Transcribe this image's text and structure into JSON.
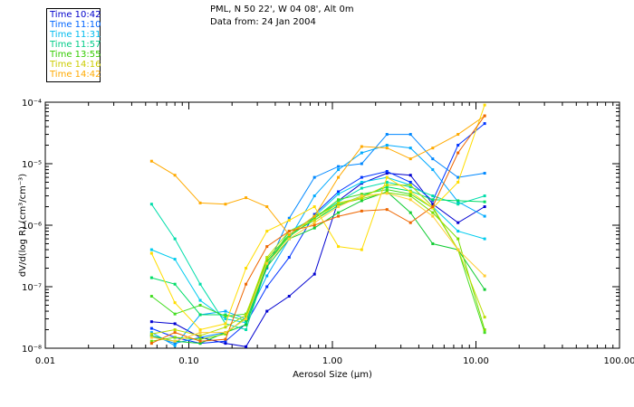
{
  "header": {
    "title": "PML, N 50 22', W 04 08', Alt 0m",
    "date": "Data from: 24 Jan 2004"
  },
  "chart_data": {
    "type": "line",
    "title": "PML, N 50 22', W 04 08', Alt 0m",
    "subtitle": "Data from: 24 Jan 2004",
    "xlabel": "Aerosol Size (μm)",
    "ylabel": "dV/d(log R)  (cm³/cm⁻³)",
    "xscale": "log",
    "yscale": "log",
    "xlim": [
      0.01,
      100
    ],
    "ylim": [
      1e-08,
      0.0001
    ],
    "x_ticks": [
      "0.01",
      "0.10",
      "1.00",
      "10.00",
      "100.00"
    ],
    "y_ticks": [
      "10⁻⁸",
      "10⁻⁷",
      "10⁻⁶",
      "10⁻⁵",
      "10⁻⁴"
    ],
    "legend_position": "top-left",
    "x": [
      0.055,
      0.08,
      0.12,
      0.18,
      0.25,
      0.35,
      0.5,
      0.75,
      1.1,
      1.6,
      2.4,
      3.5,
      5.0,
      7.5,
      11.5
    ],
    "series": [
      {
        "name": "Time 10:42",
        "color": "#0000d0",
        "values": [
          2.7e-08,
          2.5e-08,
          1.5e-08,
          1.2e-08,
          1.06e-08,
          4e-08,
          7e-08,
          1.6e-07,
          2.5e-06,
          4.8e-06,
          7e-06,
          6.5e-06,
          2.2e-06,
          1.1e-06,
          2e-06
        ]
      },
      {
        "name": "Time 10:42",
        "color": "#0033ff",
        "values": [
          2.1e-08,
          1.5e-08,
          1.2e-08,
          1.3e-08,
          2.5e-08,
          1e-07,
          3e-07,
          1.5e-06,
          3.5e-06,
          6e-06,
          7.5e-06,
          5e-06,
          2.5e-06,
          2e-05,
          4.5e-05
        ]
      },
      {
        "name": "Time 11:10",
        "color": "#0088ff",
        "values": [
          1.6e-08,
          1.2e-08,
          1.5e-08,
          1.8e-08,
          3e-08,
          2e-07,
          1.3e-06,
          6e-06,
          9e-06,
          1e-05,
          3e-05,
          3e-05,
          1.2e-05,
          6e-06,
          7e-06
        ]
      },
      {
        "name": "Time 11:10",
        "color": "#00aaff",
        "values": [
          1.8e-08,
          1.1e-08,
          3.5e-08,
          4e-08,
          3e-08,
          1.5e-07,
          6e-07,
          3e-06,
          8e-06,
          1.5e-05,
          2e-05,
          1.8e-05,
          8e-06,
          2.4e-06,
          1.4e-06
        ]
      },
      {
        "name": "Time 11:31",
        "color": "#00ccee",
        "values": [
          4e-07,
          2.8e-07,
          6e-08,
          3e-08,
          2.6e-08,
          2.5e-07,
          7e-07,
          1.4e-06,
          3.2e-06,
          5e-06,
          6e-06,
          4.5e-06,
          2e-06,
          8e-07,
          6e-07
        ]
      },
      {
        "name": "Time 11:31",
        "color": "#00ddaa",
        "values": [
          2.2e-06,
          6e-07,
          1.1e-07,
          2.5e-08,
          2e-08,
          2.2e-07,
          8e-07,
          1.3e-06,
          2.4e-06,
          4e-06,
          5e-06,
          4.2e-06,
          3e-06,
          2.2e-06,
          3e-06
        ]
      },
      {
        "name": "Time 11:57",
        "color": "#00dd66",
        "values": [
          1.4e-07,
          1.1e-07,
          3.5e-08,
          3.5e-08,
          2.8e-08,
          2.3e-07,
          7e-07,
          1.2e-06,
          2.1e-06,
          3e-06,
          4.2e-06,
          3.6e-06,
          2.6e-06,
          2.5e-06,
          2.4e-06
        ]
      },
      {
        "name": "Time 11:57",
        "color": "#11cc33",
        "values": [
          1.6e-08,
          1.3e-08,
          1.2e-08,
          1.8e-08,
          2.4e-08,
          2.1e-07,
          6e-07,
          9e-07,
          1.6e-06,
          2.5e-06,
          3.5e-06,
          1.6e-06,
          5e-07,
          4e-07,
          9e-08
        ]
      },
      {
        "name": "Time 13:55",
        "color": "#44dd22",
        "values": [
          7e-08,
          3.6e-08,
          5e-08,
          3.3e-08,
          3.6e-08,
          2.6e-07,
          6.5e-07,
          1.3e-06,
          2.6e-06,
          3.2e-06,
          3.8e-06,
          3.2e-06,
          1.9e-06,
          4e-07,
          1.8e-08
        ]
      },
      {
        "name": "Time 13:55",
        "color": "#77dd00",
        "values": [
          1.3e-08,
          1.5e-08,
          1.4e-08,
          1.7e-08,
          3.2e-08,
          2.8e-07,
          7e-07,
          1.4e-06,
          2.2e-06,
          2.7e-06,
          3.4e-06,
          3e-06,
          1.6e-06,
          6e-07,
          2e-08
        ]
      },
      {
        "name": "Time 14:16",
        "color": "#bbdd00",
        "values": [
          1.7e-08,
          2e-08,
          1.6e-08,
          2.2e-08,
          3.5e-08,
          3e-07,
          8e-07,
          1.2e-06,
          2.3e-06,
          2.8e-06,
          4.5e-06,
          4.5e-06,
          2e-06,
          4e-07,
          3.2e-08
        ]
      },
      {
        "name": "Time 14:16",
        "color": "#ffdd00",
        "values": [
          3.5e-07,
          5.5e-08,
          2e-08,
          2.5e-08,
          2e-07,
          8e-07,
          1.2e-06,
          2e-06,
          4.5e-07,
          4e-07,
          6e-06,
          3.5e-06,
          1.9e-06,
          5e-06,
          9e-05
        ]
      },
      {
        "name": "Time 14:42",
        "color": "#ffaa00",
        "values": [
          1.1e-05,
          6.5e-06,
          2.3e-06,
          2.2e-06,
          2.8e-06,
          2e-06,
          7e-07,
          1.4e-06,
          6e-06,
          1.9e-05,
          1.8e-05,
          1.2e-05,
          1.8e-05,
          3e-05,
          6e-05
        ]
      },
      {
        "name": "Time 14:42",
        "color": "#ee6600",
        "values": [
          1.2e-08,
          1.8e-08,
          1.3e-08,
          1.4e-08,
          1.1e-07,
          4.5e-07,
          8e-07,
          1e-06,
          1.4e-06,
          1.7e-06,
          1.8e-06,
          1.1e-06,
          2e-06,
          1.5e-05,
          6e-05
        ]
      },
      {
        "name": "Time 14:42",
        "color": "#ffcc33",
        "values": [
          1.5e-08,
          1.3e-08,
          1.8e-08,
          1.8e-08,
          3e-08,
          2.4e-07,
          6e-07,
          1.1e-06,
          2e-06,
          3e-06,
          3.3e-06,
          2.6e-06,
          1.4e-06,
          4e-07,
          1.5e-07
        ]
      }
    ],
    "legend": [
      {
        "label": "Time 10:42",
        "color": "#0000cc"
      },
      {
        "label": "Time 11:10",
        "color": "#0066ff"
      },
      {
        "label": "Time 11:31",
        "color": "#00bbee"
      },
      {
        "label": "Time 11:57",
        "color": "#00cc88"
      },
      {
        "label": "Time 13:55",
        "color": "#33cc00"
      },
      {
        "label": "Time 14:16",
        "color": "#cccc00"
      },
      {
        "label": "Time 14:42",
        "color": "#ffaa00"
      }
    ]
  }
}
